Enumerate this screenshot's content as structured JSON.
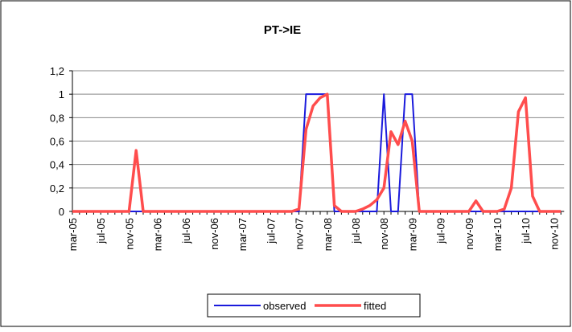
{
  "chart_data": {
    "type": "line",
    "title": "PT->IE",
    "categories": [
      "mar-05",
      null,
      null,
      null,
      "jul-05",
      null,
      null,
      null,
      "nov-05",
      null,
      null,
      null,
      "mar-06",
      null,
      null,
      null,
      "jul-06",
      null,
      null,
      null,
      "nov-06",
      null,
      null,
      null,
      "mar-07",
      null,
      null,
      null,
      "jul-07",
      null,
      null,
      null,
      "nov-07",
      null,
      null,
      null,
      "mar-08",
      null,
      null,
      null,
      "jul-08",
      null,
      null,
      null,
      "nov-08",
      null,
      null,
      null,
      "mar-09",
      null,
      null,
      null,
      "jul-09",
      null,
      null,
      null,
      "nov-09",
      null,
      null,
      null,
      "mar-10",
      null,
      null,
      null,
      "jul-10",
      null,
      null,
      null,
      "nov-10",
      null
    ],
    "series": [
      {
        "name": "observed",
        "color": "#1a1adc",
        "values": [
          0,
          0,
          0,
          0,
          0,
          0,
          0,
          0,
          0,
          0,
          0,
          0,
          0,
          0,
          0,
          0,
          0,
          0,
          0,
          0,
          0,
          0,
          0,
          0,
          0,
          0,
          0,
          0,
          0,
          0,
          0,
          0,
          0,
          1,
          1,
          1,
          1,
          0,
          0,
          0,
          0,
          0,
          0,
          0,
          1,
          0,
          0,
          1,
          1,
          0,
          0,
          0,
          0,
          0,
          0,
          0,
          0,
          0,
          0,
          0,
          0,
          0,
          0,
          0,
          0,
          0,
          0,
          0,
          0,
          0
        ]
      },
      {
        "name": "fitted",
        "color": "#ff4d4d",
        "values": [
          0,
          0,
          0,
          0,
          0,
          0,
          0,
          0,
          0,
          0.52,
          0,
          0,
          0,
          0,
          0,
          0,
          0,
          0,
          0,
          0,
          0,
          0,
          0,
          0,
          0,
          0,
          0,
          0,
          0,
          0,
          0,
          0,
          0.02,
          0.7,
          0.9,
          0.97,
          1,
          0.05,
          0,
          0,
          0,
          0.02,
          0.05,
          0.1,
          0.2,
          0.68,
          0.57,
          0.77,
          0.6,
          0,
          0,
          0,
          0,
          0,
          0,
          0,
          0,
          0.09,
          0,
          0,
          0,
          0.02,
          0.2,
          0.85,
          0.97,
          0.13,
          0,
          0,
          0,
          0
        ]
      }
    ],
    "ylim": [
      0,
      1.2
    ],
    "yticks": [
      0,
      {
        "value": 0.2,
        "label": "0,2"
      },
      {
        "value": 0.4,
        "label": "0,4"
      },
      {
        "value": 0.6,
        "label": "0,6"
      },
      {
        "value": 0.8,
        "label": "0,8"
      },
      1,
      {
        "value": 1.2,
        "label": "1,2"
      }
    ],
    "grid": true,
    "legend": "bottom"
  }
}
